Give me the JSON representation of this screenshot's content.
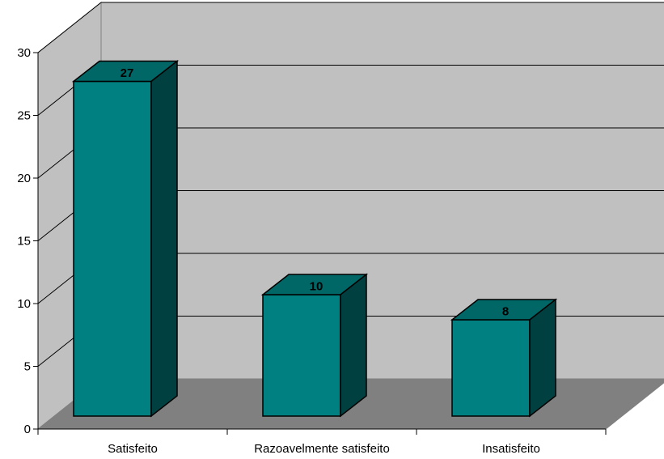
{
  "chart_data": {
    "type": "bar",
    "categories": [
      "Satisfeito",
      "Razoavelmente satisfeito",
      "Insatisfeito"
    ],
    "values": [
      27,
      10,
      8
    ],
    "data_labels": [
      "27",
      "10",
      "8"
    ],
    "title": "",
    "xlabel": "",
    "ylabel": "",
    "ylim": [
      0,
      30
    ],
    "yticks": [
      "0",
      "5",
      "10",
      "15",
      "20",
      "25",
      "30"
    ],
    "grid": true,
    "legend": "none",
    "style": "3d-column"
  },
  "colors": {
    "bar_front": "#008080",
    "bar_top": "#006666",
    "bar_side": "#004040",
    "back_wall": "#c0c0c0",
    "side_wall": "#c0c0c0",
    "floor": "#808080",
    "edge": "#000000"
  }
}
